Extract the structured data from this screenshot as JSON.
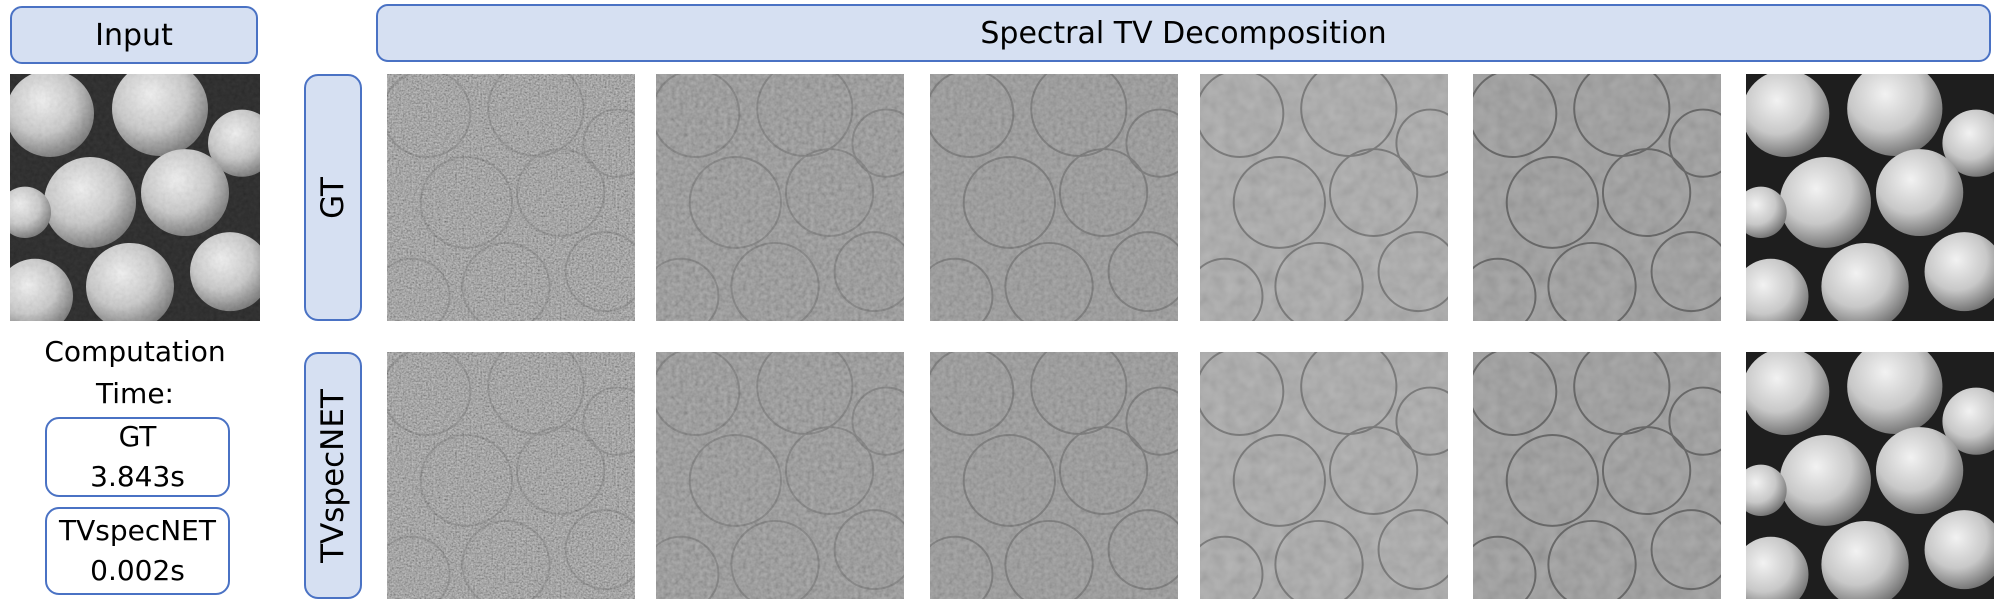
{
  "input_label": "Input",
  "header_label": "Spectral TV Decomposition",
  "rows": [
    {
      "label": "GT"
    },
    {
      "label": "TVspecNET"
    }
  ],
  "computation": {
    "title_line1": "Computation",
    "title_line2": "Time:",
    "entries": [
      {
        "method": "GT",
        "time": "3.843s"
      },
      {
        "method": "TVspecNET",
        "time": "0.002s"
      }
    ]
  },
  "tile_icon": "apple-texture-image"
}
